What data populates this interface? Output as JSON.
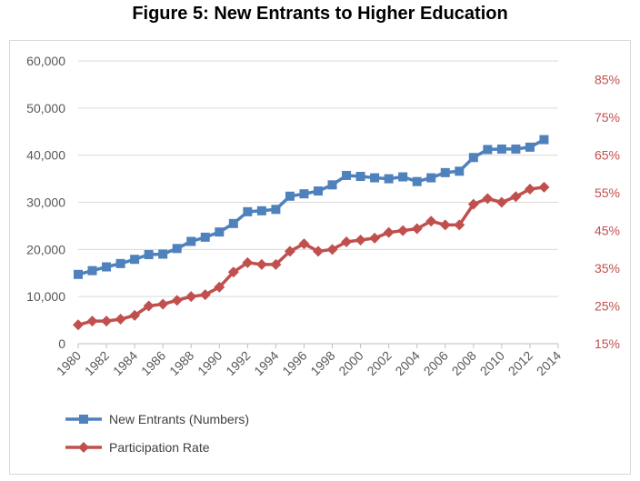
{
  "title": "Figure 5:  New Entrants to Higher Education",
  "chart_data": {
    "type": "line",
    "title": "Figure 5:  New Entrants to Higher Education",
    "x": [
      1980,
      1981,
      1982,
      1983,
      1984,
      1985,
      1986,
      1987,
      1988,
      1989,
      1990,
      1991,
      1992,
      1993,
      1994,
      1995,
      1996,
      1997,
      1998,
      1999,
      2000,
      2001,
      2002,
      2003,
      2004,
      2005,
      2006,
      2007,
      2008,
      2009,
      2010,
      2011,
      2012,
      2013
    ],
    "x_tick_labels": [
      "1980",
      "1982",
      "1984",
      "1986",
      "1988",
      "1990",
      "1992",
      "1994",
      "1996",
      "1998",
      "2000",
      "2002",
      "2004",
      "2006",
      "2008",
      "2010",
      "2012",
      "2014"
    ],
    "xlim": [
      1980,
      2014
    ],
    "y_left": {
      "ylim": [
        0,
        60000
      ],
      "tick_labels": [
        "0",
        "10,000",
        "20,000",
        "30,000",
        "40,000",
        "50,000",
        "60,000"
      ],
      "ticks": [
        0,
        10000,
        20000,
        30000,
        40000,
        50000,
        60000
      ]
    },
    "y_right": {
      "ylim": [
        15,
        90
      ],
      "tick_labels": [
        "15%",
        "25%",
        "35%",
        "45%",
        "55%",
        "65%",
        "75%",
        "85%"
      ],
      "ticks": [
        15,
        25,
        35,
        45,
        55,
        65,
        75,
        85
      ]
    },
    "grid": true,
    "legend_position": "bottom-left",
    "series": [
      {
        "name": "New Entrants (Numbers)",
        "axis": "left",
        "color": "#4f81bd",
        "marker": "square",
        "values": [
          14700,
          15500,
          16300,
          17000,
          17900,
          18900,
          19000,
          20200,
          21700,
          22600,
          23700,
          25500,
          28000,
          28200,
          28500,
          31300,
          31800,
          32400,
          33700,
          35700,
          35500,
          35200,
          35000,
          35400,
          34400,
          35200,
          36300,
          36600,
          39500,
          41200,
          41300,
          41300,
          41700,
          43300
        ]
      },
      {
        "name": "Participation Rate",
        "axis": "right",
        "color": "#c0504d",
        "marker": "diamond",
        "values": [
          20,
          21,
          21,
          21.5,
          22.5,
          25,
          25.5,
          26.5,
          27.5,
          28,
          30,
          34,
          36.5,
          36,
          36,
          39.5,
          41.5,
          39.5,
          40,
          42,
          42.5,
          43,
          44.5,
          45,
          45.5,
          47.5,
          46.5,
          46.5,
          52,
          53.5,
          52.5,
          54,
          56,
          56.5
        ]
      }
    ]
  }
}
